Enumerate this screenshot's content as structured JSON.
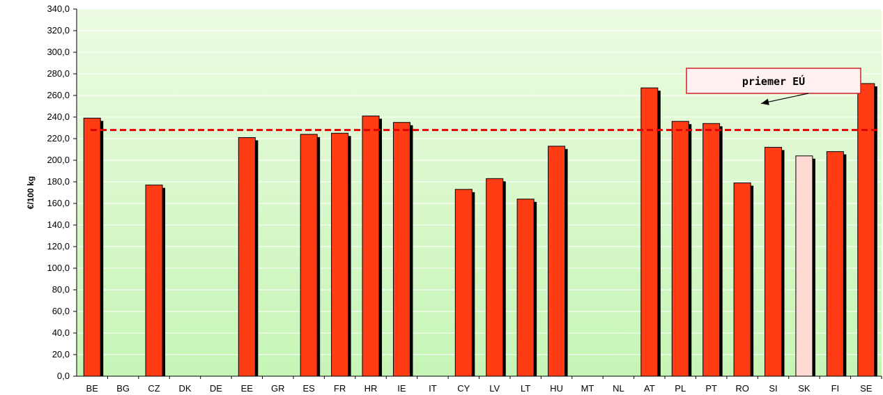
{
  "chart_data": {
    "type": "bar",
    "title": "",
    "xlabel": "",
    "ylabel": "€/100 kg",
    "ylim": [
      0,
      340
    ],
    "ytick_step": 20,
    "ytick_labels": [
      "0,0",
      "20,0",
      "40,0",
      "60,0",
      "80,0",
      "100,0",
      "120,0",
      "140,0",
      "160,0",
      "180,0",
      "200,0",
      "220,0",
      "240,0",
      "260,0",
      "280,0",
      "300,0",
      "320,0",
      "340,0"
    ],
    "grid": true,
    "categories": [
      "BE",
      "BG",
      "CZ",
      "DK",
      "DE",
      "EE",
      "GR",
      "ES",
      "FR",
      "HR",
      "IE",
      "IT",
      "CY",
      "LV",
      "LT",
      "HU",
      "MT",
      "NL",
      "AT",
      "PL",
      "PT",
      "RO",
      "SI",
      "SK",
      "FI",
      "SE"
    ],
    "values": [
      239,
      null,
      177,
      null,
      null,
      221,
      null,
      224,
      225,
      241,
      235,
      null,
      173,
      183,
      164,
      213,
      null,
      null,
      267,
      236,
      234,
      179,
      212,
      204,
      208,
      271
    ],
    "highlight_category": "SK",
    "eu_average": 228,
    "eu_average_label": "priemer EÚ",
    "colors": {
      "bar": "#ff3c14",
      "highlight_bar": "#ffd9d3",
      "bar_shadow": "#000000",
      "average_line": "#dd0000",
      "plot_bg_top": "#ecfbe2",
      "plot_bg_bottom": "#c6f5b6"
    }
  }
}
